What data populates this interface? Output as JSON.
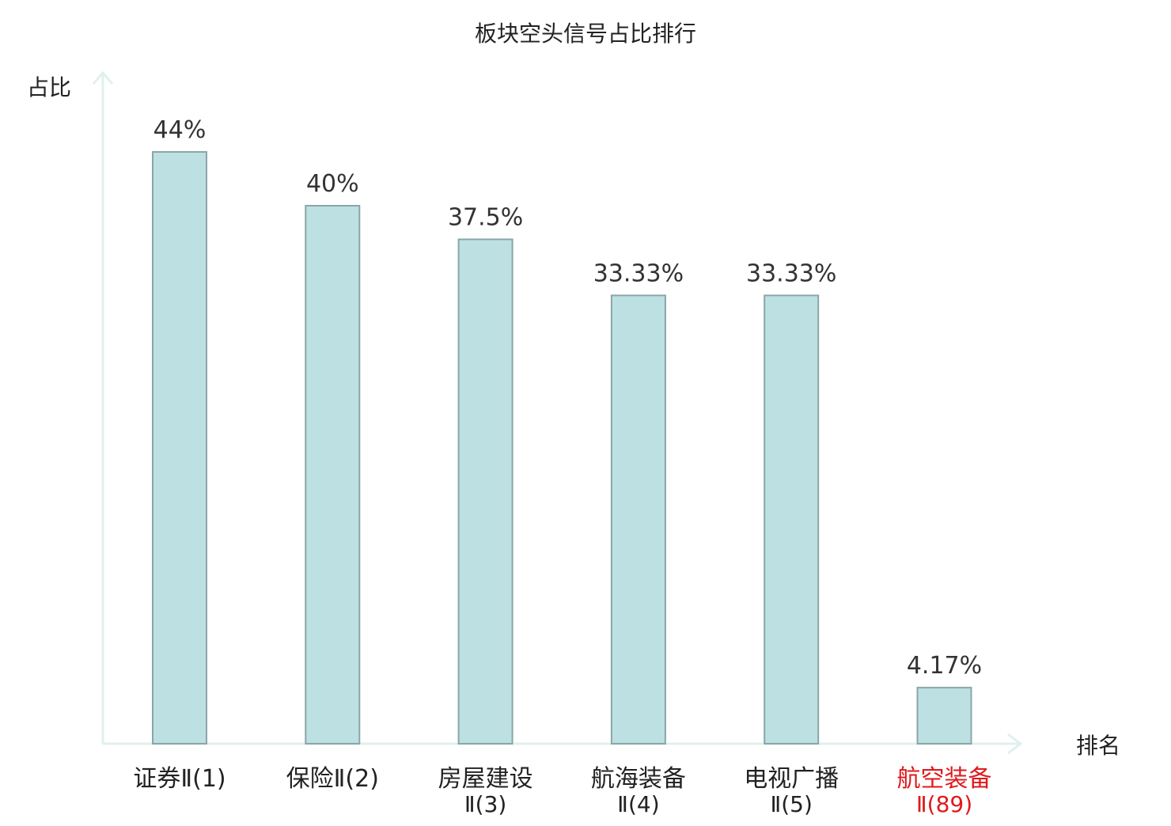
{
  "chart_data": {
    "type": "bar",
    "title": "板块空头信号占比排行",
    "ylabel": "占比",
    "xlabel": "排名",
    "ylim": [
      0,
      50
    ],
    "grid": false,
    "categories": [
      {
        "name": "证券",
        "rank": "Ⅱ(1)",
        "highlight": false
      },
      {
        "name": "保险",
        "rank": "Ⅱ(2)",
        "highlight": false
      },
      {
        "name": "房屋建设",
        "rank": "Ⅱ(3)",
        "highlight": false
      },
      {
        "name": "航海装备",
        "rank": "Ⅱ(4)",
        "highlight": false
      },
      {
        "name": "电视广播",
        "rank": "Ⅱ(5)",
        "highlight": false
      },
      {
        "name": "航空装备",
        "rank": "Ⅱ(89)",
        "highlight": true
      }
    ],
    "values": [
      44,
      40,
      37.5,
      33.33,
      33.33,
      4.17
    ],
    "value_labels": [
      "44%",
      "40%",
      "37.5%",
      "33.33%",
      "33.33%",
      "4.17%"
    ],
    "colors": {
      "bar_fill": "#bde0e3",
      "bar_stroke": "#8aa6a8",
      "axis": "#e0f0ee",
      "text": "#222222",
      "value_text": "#333333",
      "highlight": "#e0191c"
    }
  }
}
